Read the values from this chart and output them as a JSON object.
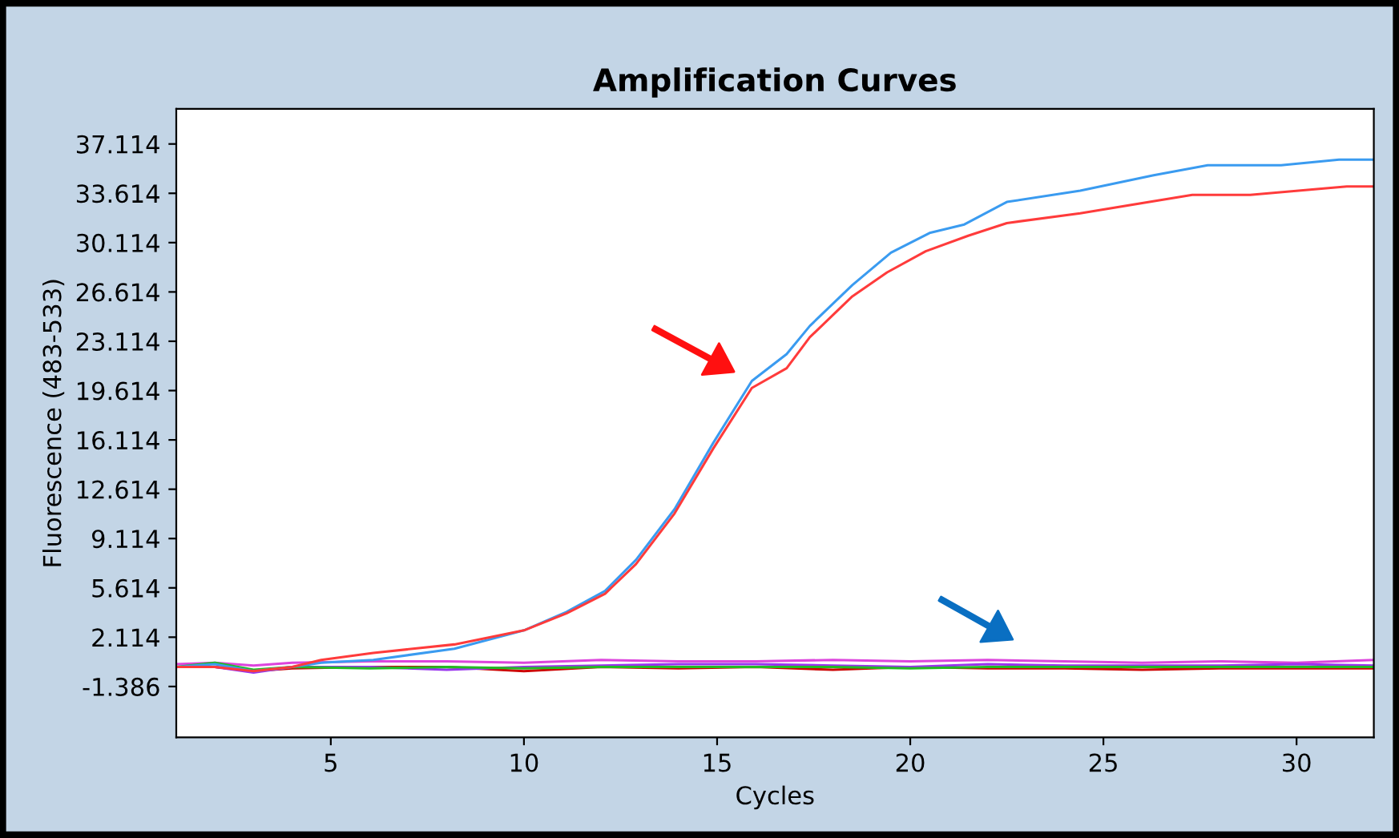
{
  "chart_data": {
    "type": "line",
    "title": "Amplification Curves",
    "xlabel": "Cycles",
    "ylabel": "Fluorescence (483-533)",
    "xlim": [
      1,
      32
    ],
    "xticks": [
      5,
      10,
      15,
      20,
      25,
      30
    ],
    "ylim": [
      -5,
      39.6
    ],
    "yticks": [
      {
        "value": -1.386,
        "label": "-1.386"
      },
      {
        "value": 2.114,
        "label": "2.114"
      },
      {
        "value": 5.614,
        "label": "5.614"
      },
      {
        "value": 9.114,
        "label": "9.114"
      },
      {
        "value": 12.614,
        "label": "12.614"
      },
      {
        "value": 16.114,
        "label": "16.114"
      },
      {
        "value": 19.614,
        "label": "19.614"
      },
      {
        "value": 23.114,
        "label": "23.114"
      },
      {
        "value": 26.614,
        "label": "26.614"
      },
      {
        "value": 30.114,
        "label": "30.114"
      },
      {
        "value": 33.614,
        "label": "33.614"
      },
      {
        "value": 37.114,
        "label": "37.114"
      }
    ],
    "grid": false,
    "legend": false,
    "marker": "none",
    "line_style": "solid",
    "series": [
      {
        "color": "#ff3b3b",
        "x": [
          1,
          2,
          3,
          4,
          4.75,
          6.1,
          8.2,
          10,
          11.1,
          12.1,
          12.9,
          13.9,
          14.9,
          15.9,
          16.8,
          17.4,
          18.5,
          19.4,
          20.4,
          21.5,
          22.5,
          24.4,
          27.3,
          28.8,
          31.3,
          32
        ],
        "values": [
          0,
          0,
          -0.3,
          0,
          0.5,
          1.0,
          1.6,
          2.6,
          3.8,
          5.2,
          7.3,
          10.9,
          15.5,
          19.8,
          21.2,
          23.4,
          26.3,
          28.0,
          29.5,
          30.6,
          31.5,
          32.2,
          33.5,
          33.5,
          34.1,
          34.1
        ]
      },
      {
        "color": "#3a9bf0",
        "x": [
          1,
          2,
          3,
          4,
          4.75,
          6.1,
          8.2,
          10,
          11.1,
          12.1,
          12.9,
          13.9,
          14.9,
          15.9,
          16.8,
          17.4,
          18.5,
          19.5,
          20.5,
          21.4,
          22.5,
          24.4,
          26.3,
          27.7,
          29.6,
          31.1,
          32
        ],
        "values": [
          0,
          0.2,
          -0.3,
          0,
          0.3,
          0.5,
          1.3,
          2.6,
          3.9,
          5.4,
          7.6,
          11.2,
          15.9,
          20.3,
          22.2,
          24.2,
          27.1,
          29.4,
          30.8,
          31.4,
          33.0,
          33.8,
          34.9,
          35.6,
          35.6,
          36.0,
          36.0
        ]
      },
      {
        "color": "#22bb22",
        "x": [
          1,
          2,
          3,
          4,
          6,
          8,
          10,
          12,
          14,
          16,
          18,
          20,
          22,
          24,
          26,
          28,
          30,
          32
        ],
        "values": [
          0,
          0.3,
          -0.2,
          0,
          -0.1,
          0,
          -0.1,
          0,
          0,
          0,
          0,
          -0.1,
          0,
          0,
          0,
          0,
          0,
          0
        ]
      },
      {
        "color": "#9933ee",
        "x": [
          1,
          2,
          3,
          4,
          6,
          8,
          10,
          12,
          14,
          16,
          18,
          20,
          22,
          24,
          26,
          28,
          30,
          32
        ],
        "values": [
          0,
          0,
          -0.4,
          0,
          0,
          -0.2,
          0,
          0.1,
          0.2,
          0.2,
          0.1,
          0,
          0.2,
          0.1,
          0.1,
          0.1,
          0.2,
          0.1
        ]
      },
      {
        "color": "#dd44dd",
        "x": [
          1,
          2,
          3,
          4,
          6,
          8,
          10,
          12,
          14,
          16,
          18,
          20,
          22,
          24,
          26,
          28,
          30,
          32
        ],
        "values": [
          0.2,
          0.3,
          0.1,
          0.3,
          0.4,
          0.4,
          0.3,
          0.5,
          0.4,
          0.4,
          0.5,
          0.4,
          0.5,
          0.4,
          0.3,
          0.4,
          0.3,
          0.5
        ]
      },
      {
        "color": "#cc0000",
        "x": [
          1,
          2,
          3,
          4,
          6,
          8,
          10,
          12,
          14,
          16,
          18,
          20,
          22,
          24,
          26,
          28,
          30,
          32
        ],
        "values": [
          0,
          0,
          -0.3,
          -0.1,
          0,
          0,
          -0.3,
          0,
          -0.1,
          0,
          -0.2,
          0,
          -0.1,
          -0.1,
          -0.2,
          -0.1,
          -0.1,
          -0.1
        ]
      }
    ]
  }
}
